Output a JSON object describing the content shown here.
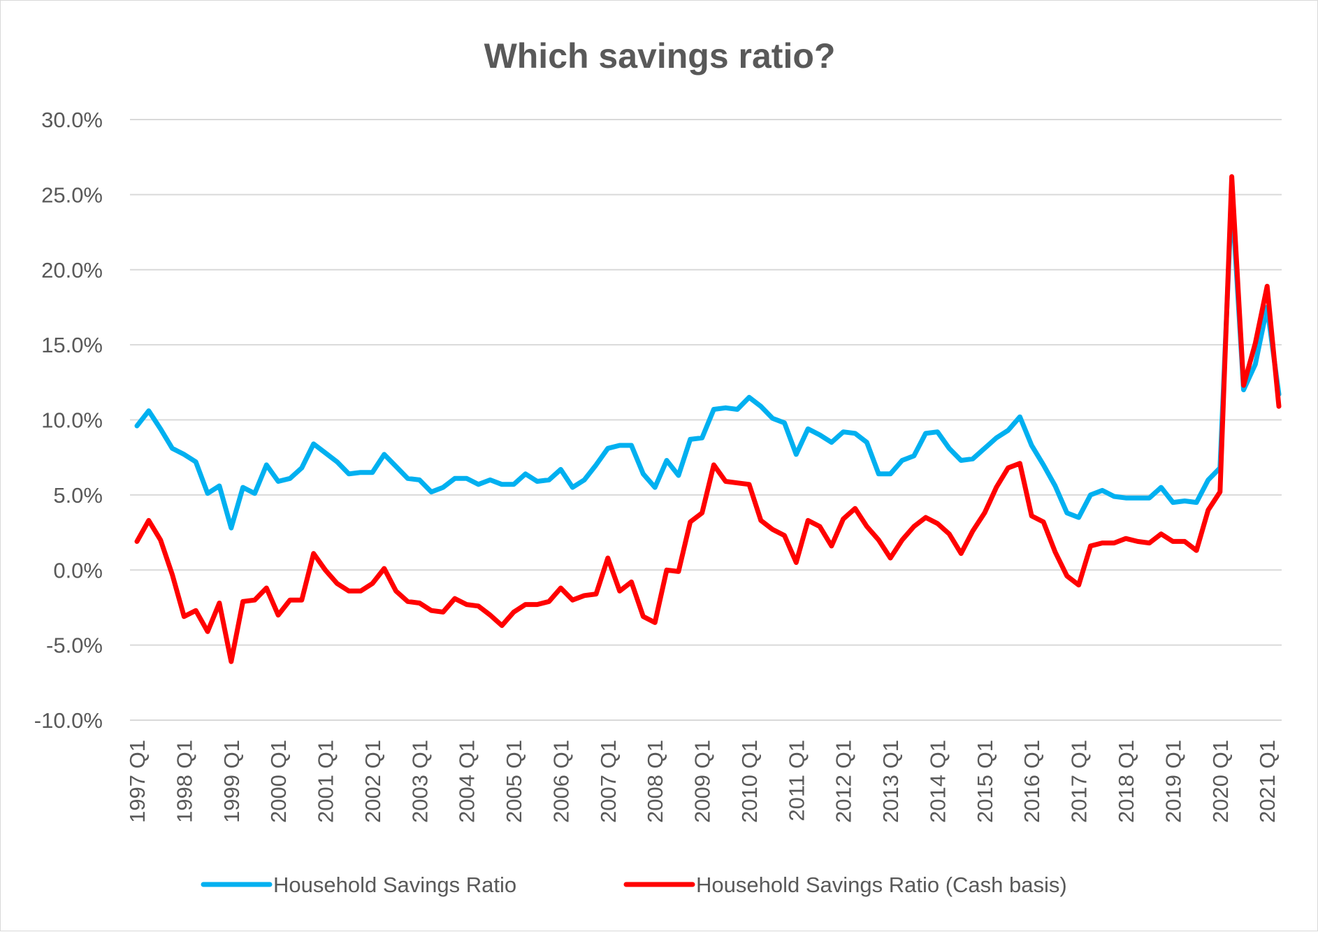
{
  "chart_data": {
    "type": "line",
    "title": "Which savings ratio?",
    "xlabel": "",
    "ylabel": "",
    "ylim": [
      -10,
      30
    ],
    "yticks": [
      "-10.0%",
      "-5.0%",
      "0.0%",
      "5.0%",
      "10.0%",
      "15.0%",
      "20.0%",
      "25.0%",
      "30.0%"
    ],
    "ytick_values": [
      -10,
      -5,
      0,
      5,
      10,
      15,
      20,
      25,
      30
    ],
    "x_tick_labels": [
      "1997 Q1",
      "1998 Q1",
      "1999 Q1",
      "2000 Q1",
      "2001 Q1",
      "2002 Q1",
      "2003 Q1",
      "2004 Q1",
      "2005 Q1",
      "2006 Q1",
      "2007 Q1",
      "2008 Q1",
      "2009 Q1",
      "2010 Q1",
      "2011 Q1",
      "2012 Q1",
      "2013 Q1",
      "2014 Q1",
      "2015 Q1",
      "2016 Q1",
      "2017 Q1",
      "2018 Q1",
      "2019 Q1",
      "2020 Q1",
      "2021 Q1"
    ],
    "quarters_per_label": 4,
    "grid": true,
    "legend_position": "bottom",
    "series": [
      {
        "name": "Household Savings Ratio",
        "color": "#00b0f0",
        "values": [
          9.6,
          10.6,
          9.4,
          8.1,
          7.7,
          7.2,
          5.1,
          5.6,
          2.8,
          5.5,
          5.1,
          7.0,
          5.9,
          6.1,
          6.8,
          8.4,
          7.8,
          7.2,
          6.4,
          6.5,
          6.5,
          7.7,
          6.9,
          6.1,
          6.0,
          5.2,
          5.5,
          6.1,
          6.1,
          5.7,
          6.0,
          5.7,
          5.7,
          6.4,
          5.9,
          6.0,
          6.7,
          5.5,
          6.0,
          7.0,
          8.1,
          8.3,
          8.3,
          6.4,
          5.5,
          7.3,
          6.3,
          8.7,
          8.8,
          10.7,
          10.8,
          10.7,
          11.5,
          10.9,
          10.1,
          9.8,
          7.7,
          9.4,
          9.0,
          8.5,
          9.2,
          9.1,
          8.5,
          6.4,
          6.4,
          7.3,
          7.6,
          9.1,
          9.2,
          8.1,
          7.3,
          7.4,
          8.1,
          8.8,
          9.3,
          10.2,
          8.3,
          7.0,
          5.6,
          3.8,
          3.5,
          5.0,
          5.3,
          4.9,
          4.8,
          4.8,
          4.8,
          5.5,
          4.5,
          4.6,
          4.5,
          6.0,
          6.8,
          25.0,
          12.0,
          13.7,
          17.5,
          11.7
        ]
      },
      {
        "name": "Household Savings Ratio (Cash basis)",
        "color": "#ff0000",
        "values": [
          1.9,
          3.3,
          2.0,
          -0.3,
          -3.1,
          -2.7,
          -4.1,
          -2.2,
          -6.1,
          -2.1,
          -2.0,
          -1.2,
          -3.0,
          -2.0,
          -2.0,
          1.1,
          0.0,
          -0.9,
          -1.4,
          -1.4,
          -0.9,
          0.1,
          -1.4,
          -2.1,
          -2.2,
          -2.7,
          -2.8,
          -1.9,
          -2.3,
          -2.4,
          -3.0,
          -3.7,
          -2.8,
          -2.3,
          -2.3,
          -2.1,
          -1.2,
          -2.0,
          -1.7,
          -1.6,
          0.8,
          -1.4,
          -0.8,
          -3.1,
          -3.5,
          0.0,
          -0.1,
          3.2,
          3.8,
          7.0,
          5.9,
          5.8,
          5.7,
          3.3,
          2.7,
          2.3,
          0.5,
          3.3,
          2.9,
          1.6,
          3.4,
          4.1,
          2.9,
          2.0,
          0.8,
          2.0,
          2.9,
          3.5,
          3.1,
          2.4,
          1.1,
          2.6,
          3.8,
          5.5,
          6.8,
          7.1,
          3.6,
          3.2,
          1.2,
          -0.4,
          -1.0,
          1.6,
          1.8,
          1.8,
          2.1,
          1.9,
          1.8,
          2.4,
          1.9,
          1.9,
          1.3,
          4.0,
          5.2,
          26.2,
          12.3,
          15.1,
          18.9,
          10.9
        ]
      }
    ]
  }
}
